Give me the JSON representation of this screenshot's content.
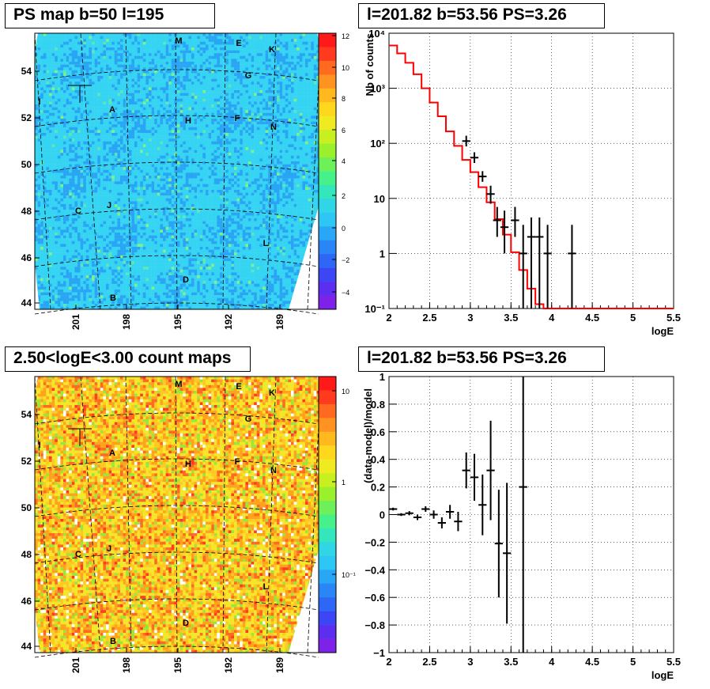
{
  "panels": {
    "map_top": {
      "title": "PS map b=50 l=195",
      "lat_ticks": [
        "54",
        "52",
        "50",
        "48",
        "46",
        "44"
      ],
      "lon_ticks": [
        "201",
        "198",
        "195",
        "192",
        "189"
      ],
      "colorbar_ticks": [
        "12",
        "10",
        "8",
        "6",
        "4",
        "2",
        "0",
        "−2",
        "−4"
      ],
      "source_letters": [
        "M",
        "E",
        "K",
        "G",
        "I",
        "A",
        "H",
        "F",
        "N",
        "C",
        "J",
        "L",
        "D",
        "B"
      ]
    },
    "map_bottom": {
      "title": "2.50<logE<3.00 count maps",
      "lat_ticks": [
        "54",
        "52",
        "50",
        "48",
        "46",
        "44"
      ],
      "lon_ticks": [
        "201",
        "198",
        "195",
        "192",
        "189"
      ],
      "colorbar_ticks": [
        "10",
        "1",
        "10⁻¹"
      ],
      "source_letters": [
        "M",
        "E",
        "K",
        "G",
        "I",
        "A",
        "H",
        "F",
        "N",
        "C",
        "J",
        "L",
        "D",
        "B"
      ]
    },
    "spectrum": {
      "title": "l=201.82 b=53.56 PS=3.26"
    },
    "residual": {
      "title": "l=201.82 b=53.56 PS=3.26"
    }
  },
  "chart_data": [
    {
      "type": "heatmap",
      "title": "PS map b=50 l=195",
      "xlabel": "",
      "ylabel": "",
      "colorscale_range": [
        -5,
        12
      ],
      "background_level": 0,
      "colors": {
        "background": "#35d4f2",
        "low": "#2aa4f4",
        "high": "#7ef28a"
      }
    },
    {
      "type": "line",
      "title": "l=201.82 b=53.56 PS=3.26",
      "xlabel": "logE",
      "ylabel": "Nb of counts",
      "xlim": [
        2,
        5.5
      ],
      "ylim": [
        0.1,
        10000
      ],
      "yscale": "log",
      "grid": true,
      "x_ticks": [
        "2",
        "2.5",
        "3",
        "3.5",
        "4",
        "4.5",
        "5",
        "5.5"
      ],
      "y_ticks": [
        "10⁻¹",
        "1",
        "10",
        "10²",
        "10³",
        "10⁴"
      ],
      "series": [
        {
          "style": "step",
          "color": "#ff0000",
          "bin_edges": [
            2.0,
            2.1,
            2.2,
            2.3,
            2.4,
            2.5,
            2.6,
            2.7,
            2.8,
            2.9,
            3.0,
            3.1,
            3.2,
            3.3,
            3.4,
            3.5,
            3.6,
            3.7,
            3.8,
            3.9,
            4.0,
            5.5
          ],
          "values": [
            6000,
            4300,
            2900,
            1800,
            1000,
            550,
            310,
            165,
            90,
            50,
            30,
            16,
            8.5,
            4.2,
            2.2,
            1.05,
            0.5,
            0.23,
            0.12,
            0.1,
            0.1
          ]
        },
        {
          "style": "errorbar",
          "color": "#000000",
          "x": [
            3.25,
            3.33,
            3.42,
            3.55,
            3.65,
            3.75,
            3.85,
            3.95,
            4.25
          ],
          "xerr": 0.05,
          "y": [
            12,
            4,
            3,
            4,
            1,
            2,
            2,
            1,
            1
          ],
          "yerr_low": [
            4,
            2,
            2,
            2,
            0.9,
            1.9,
            1.9,
            0.9,
            0.9
          ],
          "yerr_high": [
            5,
            3,
            3,
            3,
            2.3,
            2.5,
            2.5,
            2.3,
            2.3
          ]
        }
      ]
    },
    {
      "type": "heatmap",
      "title": "2.50<logE<3.00 count maps",
      "xlabel": "",
      "ylabel": "",
      "colorscale": "log",
      "colorscale_range": [
        0.03,
        15
      ],
      "colors": {
        "low": "#f4e628",
        "mid": "#ffa21e",
        "high": "#ff5022",
        "sparse": "#9ce63a"
      }
    },
    {
      "type": "scatter",
      "title": "l=201.82 b=53.56 PS=3.26",
      "xlabel": "logE",
      "ylabel": "(data-model)/model",
      "xlim": [
        2,
        5.5
      ],
      "ylim": [
        -1,
        1
      ],
      "grid": true,
      "x_ticks": [
        "2",
        "2.5",
        "3",
        "3.5",
        "4",
        "4.5",
        "5",
        "5.5"
      ],
      "y_ticks": [
        "−1",
        "−0.8",
        "−0.6",
        "−0.4",
        "−0.2",
        "0",
        "0.2",
        "0.4",
        "0.6",
        "0.8",
        "1"
      ],
      "series": [
        {
          "style": "errorbar",
          "color": "#000000",
          "x": [
            2.05,
            2.15,
            2.25,
            2.35,
            2.45,
            2.55,
            2.65,
            2.75,
            2.85,
            2.95,
            3.05,
            3.15,
            3.25,
            3.35,
            3.45,
            3.65
          ],
          "y": [
            0.04,
            0.0,
            0.01,
            -0.02,
            0.04,
            0.0,
            -0.06,
            0.02,
            -0.05,
            0.32,
            0.27,
            0.07,
            0.32,
            -0.21,
            -0.28,
            0.2
          ],
          "yerr": [
            0.01,
            0.01,
            0.015,
            0.02,
            0.02,
            0.03,
            0.04,
            0.05,
            0.07,
            0.13,
            0.17,
            0.22,
            0.36,
            0.39,
            0.51,
            1.3
          ]
        }
      ]
    }
  ]
}
